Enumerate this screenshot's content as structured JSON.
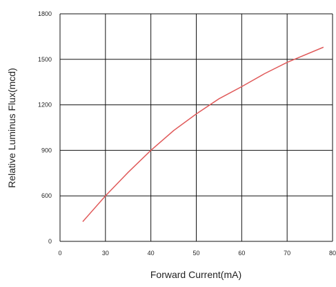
{
  "chart_data": {
    "type": "line",
    "x_label": "Forward  Current(mA)",
    "y_label": "Relative Luminus Flux(mcd)",
    "x": [
      25,
      30,
      35,
      40,
      45,
      50,
      55,
      60,
      65,
      70,
      78
    ],
    "series": [
      {
        "color": "#e05a5a",
        "values": [
          430,
          600,
          755,
          900,
          1030,
          1140,
          1240,
          1320,
          1405,
          1480,
          1580
        ]
      }
    ],
    "xlim": [
      20,
      80
    ],
    "xticks": [
      {
        "value": 20,
        "label": "0"
      },
      30,
      40,
      50,
      60,
      70,
      80
    ],
    "ylim": [
      300,
      1800
    ],
    "yticks": [
      {
        "value": 300,
        "label": "0"
      },
      600,
      900,
      1200,
      1500,
      1800
    ],
    "grid": true
  }
}
